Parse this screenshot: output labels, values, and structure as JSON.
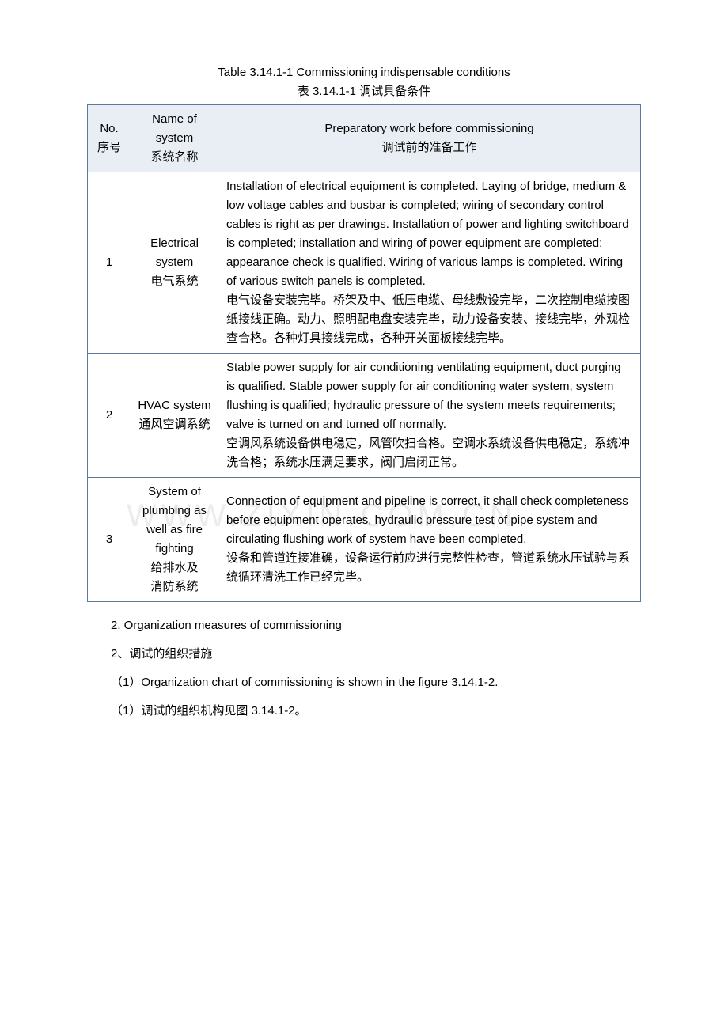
{
  "caption": {
    "line1_en": "Table 3.14.1-1   Commissioning indispensable conditions",
    "line2_zh": "表 3.14.1-1    调试具备条件"
  },
  "table": {
    "headers": {
      "no_en": "No.",
      "no_zh": "序号",
      "name_en": "Name of system",
      "name_zh": "系统名称",
      "prep_en": "Preparatory work before commissioning",
      "prep_zh": "调试前的准备工作"
    },
    "rows": [
      {
        "no": "1",
        "name_en": "Electrical system",
        "name_zh": "电气系统",
        "prep": "Installation of electrical equipment is completed. Laying of bridge, medium & low voltage cables and busbar is completed; wiring of secondary control cables is right as per drawings. Installation of power and lighting switchboard is completed; installation and wiring of power equipment are completed; appearance check is qualified. Wiring of various lamps is completed. Wiring of various switch panels is completed.\n电气设备安装完毕。桥架及中、低压电缆、母线敷设完毕，二次控制电缆按图纸接线正确。动力、照明配电盘安装完毕，动力设备安装、接线完毕，外观检查合格。各种灯具接线完成，各种开关面板接线完毕。"
      },
      {
        "no": "2",
        "name_en": "HVAC system",
        "name_zh": "通风空调系统",
        "prep": "Stable power supply for air conditioning ventilating equipment, duct purging    is qualified. Stable power supply for air conditioning water system, system flushing is qualified; hydraulic pressure of the system meets requirements; valve is turned on and turned off normally.\n空调风系统设备供电稳定，风管吹扫合格。空调水系统设备供电稳定，系统冲洗合格；系统水压满足要求，阀门启闭正常。"
      },
      {
        "no": "3",
        "name_en": "System of plumbing as well as fire fighting",
        "name_zh": "给排水及\n消防系统",
        "prep": "Connection of equipment and pipeline is correct, it shall check completeness before equipment operates, hydraulic pressure test of pipe system and circulating flushing work of system have been completed.\n设备和管道连接准确，设备运行前应进行完整性检查，管道系统水压试验与系统循环清洗工作已经完毕。"
      }
    ]
  },
  "paragraphs": {
    "p1": "2. Organization measures of commissioning",
    "p2": "2、调试的组织措施",
    "p3": "（1）Organization chart of commissioning is shown in the figure 3.14.1-2.",
    "p4": "（1）调试的组织机构见图 3.14.1-2。"
  },
  "watermark": "WWW.ZIXIN.COM.CN",
  "colors": {
    "border": "#5b7a9a",
    "header_bg": "#e9eef4",
    "text": "#000000",
    "background": "#ffffff",
    "watermark": "#ececec"
  }
}
